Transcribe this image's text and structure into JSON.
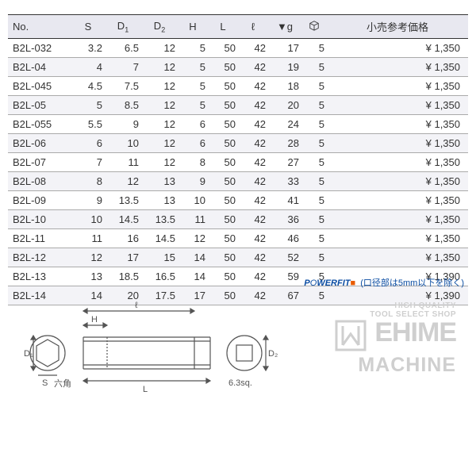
{
  "table": {
    "columns": [
      "No.",
      "S",
      "D₁",
      "D₂",
      "H",
      "L",
      "ℓ",
      "▼g",
      "📦",
      "小売参考価格"
    ],
    "rows": [
      [
        "B2L-032",
        "3.2",
        "6.5",
        "12",
        "5",
        "50",
        "42",
        "17",
        "5",
        "¥  1,350"
      ],
      [
        "B2L-04",
        "4",
        "7",
        "12",
        "5",
        "50",
        "42",
        "19",
        "5",
        "¥  1,350"
      ],
      [
        "B2L-045",
        "4.5",
        "7.5",
        "12",
        "5",
        "50",
        "42",
        "18",
        "5",
        "¥  1,350"
      ],
      [
        "B2L-05",
        "5",
        "8.5",
        "12",
        "5",
        "50",
        "42",
        "20",
        "5",
        "¥  1,350"
      ],
      [
        "B2L-055",
        "5.5",
        "9",
        "12",
        "6",
        "50",
        "42",
        "24",
        "5",
        "¥  1,350"
      ],
      [
        "B2L-06",
        "6",
        "10",
        "12",
        "6",
        "50",
        "42",
        "28",
        "5",
        "¥  1,350"
      ],
      [
        "B2L-07",
        "7",
        "11",
        "12",
        "8",
        "50",
        "42",
        "27",
        "5",
        "¥  1,350"
      ],
      [
        "B2L-08",
        "8",
        "12",
        "13",
        "9",
        "50",
        "42",
        "33",
        "5",
        "¥  1,350"
      ],
      [
        "B2L-09",
        "9",
        "13.5",
        "13",
        "10",
        "50",
        "42",
        "41",
        "5",
        "¥  1,350"
      ],
      [
        "B2L-10",
        "10",
        "14.5",
        "13.5",
        "11",
        "50",
        "42",
        "36",
        "5",
        "¥  1,350"
      ],
      [
        "B2L-11",
        "11",
        "16",
        "14.5",
        "12",
        "50",
        "42",
        "46",
        "5",
        "¥  1,350"
      ],
      [
        "B2L-12",
        "12",
        "17",
        "15",
        "14",
        "50",
        "42",
        "52",
        "5",
        "¥  1,350"
      ],
      [
        "B2L-13",
        "13",
        "18.5",
        "16.5",
        "14",
        "50",
        "42",
        "59",
        "5",
        "¥  1,390"
      ],
      [
        "B2L-14",
        "14",
        "20",
        "17.5",
        "17",
        "50",
        "42",
        "67",
        "5",
        "¥  1,390"
      ]
    ],
    "col_widths": [
      "80px",
      "42px",
      "46px",
      "46px",
      "38px",
      "38px",
      "38px",
      "42px",
      "32px",
      "auto"
    ],
    "header_bg": "#e8e8f0",
    "alt_bg": "#f3f3f7",
    "border_color": "#333333"
  },
  "powerfit": {
    "logo_text": "POWERFIT",
    "square": "■",
    "note": "(口径部は5mm以下を除く)"
  },
  "diagram": {
    "labels": {
      "H": "H",
      "l": "ℓ",
      "D1": "D₁",
      "D2": "D₂",
      "S": "S",
      "L": "L",
      "rokkaku": "六角",
      "sq": "6.3sq."
    },
    "stroke": "#555555",
    "stroke_width": 1.2
  },
  "watermark": {
    "line1": "HIGH QUALITY",
    "line2": "TOOL SELECT SHOP",
    "brand1": "EHIME",
    "brand2": "MACHINE",
    "color": "#cfcfcf"
  }
}
